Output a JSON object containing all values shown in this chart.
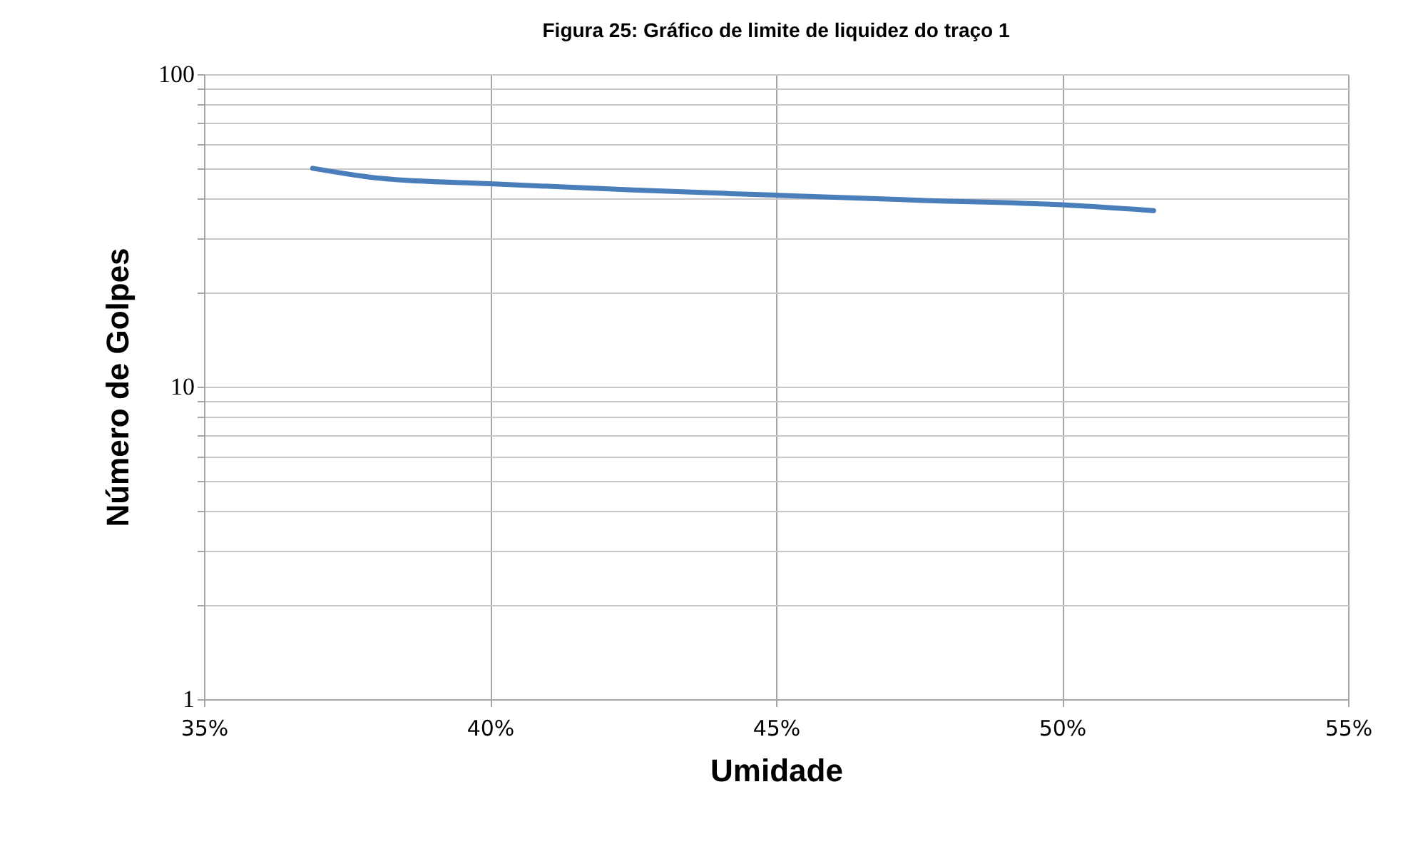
{
  "chart_data": {
    "type": "line",
    "title": "Figura 25: Gráfico de limite de liquidez do traço 1",
    "xlabel": "Umidade",
    "ylabel": "Número de Golpes",
    "x": [
      36.9,
      38.1,
      40,
      42.5,
      45,
      47.5,
      50,
      51.6
    ],
    "series": [
      {
        "color": "#4a7ebb",
        "values": [
          50,
          46.4,
          44.6,
          42.6,
          41,
          39.5,
          38.2,
          36.6
        ]
      }
    ],
    "log": "y",
    "grid": true,
    "legend": false,
    "marker": "none",
    "line_style": "solid",
    "xlim": [
      35,
      55
    ],
    "xticks": [
      {
        "value": 35,
        "label": "35%"
      },
      {
        "value": 40,
        "label": "40%"
      },
      {
        "value": 45,
        "label": "45%"
      },
      {
        "value": 50,
        "label": "50%"
      },
      {
        "value": 55,
        "label": "55%"
      }
    ],
    "ylim": [
      1,
      100
    ],
    "yticks": [
      1,
      {
        "value": 2,
        "label": null
      },
      {
        "value": 3,
        "label": null
      },
      {
        "value": 4,
        "label": null
      },
      {
        "value": 5,
        "label": null
      },
      {
        "value": 6,
        "label": null
      },
      {
        "value": 7,
        "label": null
      },
      {
        "value": 8,
        "label": null
      },
      {
        "value": 9,
        "label": null
      },
      10,
      {
        "value": 20,
        "label": null
      },
      {
        "value": 30,
        "label": null
      },
      {
        "value": 40,
        "label": null
      },
      {
        "value": 50,
        "label": null
      },
      {
        "value": 60,
        "label": null
      },
      {
        "value": 70,
        "label": null
      },
      {
        "value": 80,
        "label": null
      },
      {
        "value": 90,
        "label": null
      },
      100
    ]
  }
}
